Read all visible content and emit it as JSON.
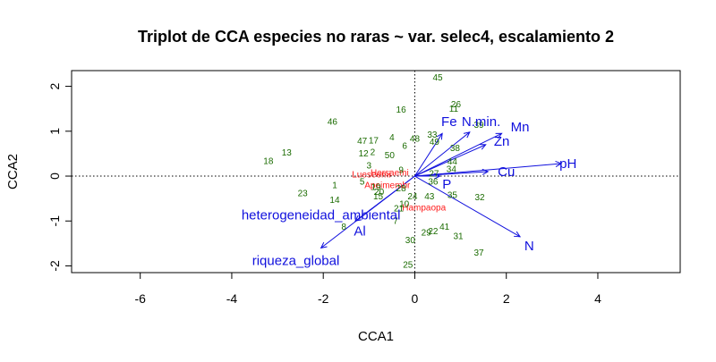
{
  "chart_data": {
    "type": "scatter",
    "title": "Triplot de CCA especies no raras ~ var. selec4, escalamiento 2",
    "xlabel": "CCA1",
    "ylabel": "CCA2",
    "xlim": [
      -7.5,
      5.8
    ],
    "ylim": [
      -2.15,
      2.35
    ],
    "x_ticks": [
      -6,
      -4,
      -2,
      0,
      2,
      4
    ],
    "y_ticks": [
      -2,
      -1,
      0,
      1,
      2
    ],
    "reference_lines": {
      "x": 0,
      "y": 0,
      "style": "dotted"
    },
    "colors": {
      "sites": "#1a6b00",
      "species": "#ff1a1a",
      "vectors": "#1010dd"
    },
    "sites": [
      {
        "label": "45",
        "x": 0.5,
        "y": 2.2
      },
      {
        "label": "26",
        "x": 0.9,
        "y": 1.6
      },
      {
        "label": "11",
        "x": 0.85,
        "y": 1.5
      },
      {
        "label": "16",
        "x": -0.3,
        "y": 1.48
      },
      {
        "label": "39",
        "x": 1.4,
        "y": 1.15
      },
      {
        "label": "46",
        "x": -1.8,
        "y": 1.22
      },
      {
        "label": "33",
        "x": 0.38,
        "y": 0.93
      },
      {
        "label": "4",
        "x": -0.5,
        "y": 0.87
      },
      {
        "label": "48",
        "x": 0.0,
        "y": 0.84
      },
      {
        "label": "49",
        "x": 0.43,
        "y": 0.77
      },
      {
        "label": "47",
        "x": -1.15,
        "y": 0.79
      },
      {
        "label": "6",
        "x": -0.22,
        "y": 0.68
      },
      {
        "label": "38",
        "x": 0.88,
        "y": 0.63
      },
      {
        "label": "2",
        "x": -0.92,
        "y": 0.54
      },
      {
        "label": "13",
        "x": -2.8,
        "y": 0.53
      },
      {
        "label": "12",
        "x": -1.12,
        "y": 0.51
      },
      {
        "label": "50",
        "x": -0.55,
        "y": 0.47
      },
      {
        "label": "18",
        "x": -3.2,
        "y": 0.34
      },
      {
        "label": "17",
        "x": -0.9,
        "y": 0.8
      },
      {
        "label": "3",
        "x": -1.0,
        "y": 0.24
      },
      {
        "label": "9",
        "x": -0.3,
        "y": 0.14
      },
      {
        "label": "44",
        "x": 0.82,
        "y": 0.33
      },
      {
        "label": "34",
        "x": 0.8,
        "y": 0.16
      },
      {
        "label": "27",
        "x": 0.42,
        "y": 0.06
      },
      {
        "label": "5",
        "x": -1.15,
        "y": -0.12
      },
      {
        "label": "1",
        "x": -1.75,
        "y": -0.2
      },
      {
        "label": "19",
        "x": -0.85,
        "y": -0.24
      },
      {
        "label": "36",
        "x": 0.4,
        "y": -0.12
      },
      {
        "label": "28",
        "x": -0.3,
        "y": -0.27
      },
      {
        "label": "20",
        "x": -0.78,
        "y": -0.35
      },
      {
        "label": "15",
        "x": -0.8,
        "y": -0.45
      },
      {
        "label": "24",
        "x": -0.05,
        "y": -0.45
      },
      {
        "label": "43",
        "x": 0.32,
        "y": -0.45
      },
      {
        "label": "35",
        "x": 0.82,
        "y": -0.42
      },
      {
        "label": "23",
        "x": -2.45,
        "y": -0.38
      },
      {
        "label": "32",
        "x": 1.42,
        "y": -0.47
      },
      {
        "label": "14",
        "x": -1.75,
        "y": -0.53
      },
      {
        "label": "10",
        "x": -0.23,
        "y": -0.62
      },
      {
        "label": "21",
        "x": -0.35,
        "y": -0.72
      },
      {
        "label": "7",
        "x": -0.42,
        "y": -1.0
      },
      {
        "label": "8",
        "x": -1.55,
        "y": -1.12
      },
      {
        "label": "41",
        "x": 0.65,
        "y": -1.12
      },
      {
        "label": "22",
        "x": 0.4,
        "y": -1.22
      },
      {
        "label": "29",
        "x": 0.25,
        "y": -1.25
      },
      {
        "label": "31",
        "x": 0.95,
        "y": -1.33
      },
      {
        "label": "30",
        "x": -0.1,
        "y": -1.42
      },
      {
        "label": "37",
        "x": 1.4,
        "y": -1.7
      },
      {
        "label": "25",
        "x": -0.15,
        "y": -1.97
      }
    ],
    "species": [
      {
        "label": "Lueseemi",
        "x": -0.95,
        "y": 0.04
      },
      {
        "label": "Hersaemi",
        "x": -0.55,
        "y": 0.08
      },
      {
        "label": "Apeimembr",
        "x": -0.6,
        "y": -0.2
      },
      {
        "label": "Hampaopa",
        "x": 0.2,
        "y": -0.7
      }
    ],
    "vectors": [
      {
        "label": "pH",
        "x": 3.2,
        "y": 0.28,
        "label_x": 3.35,
        "label_y": 0.28
      },
      {
        "label": "Cu",
        "x": 1.6,
        "y": 0.1,
        "label_x": 2.0,
        "label_y": 0.1
      },
      {
        "label": "Zn",
        "x": 1.55,
        "y": 0.7,
        "label_x": 1.9,
        "label_y": 0.78
      },
      {
        "label": "Mn",
        "x": 1.9,
        "y": 0.95,
        "label_x": 2.3,
        "label_y": 1.1
      },
      {
        "label": "N.min.",
        "x": 1.2,
        "y": 0.98,
        "label_x": 1.45,
        "label_y": 1.22
      },
      {
        "label": "Fe",
        "x": 0.6,
        "y": 0.95,
        "label_x": 0.75,
        "label_y": 1.22
      },
      {
        "label": "P",
        "x": 0.55,
        "y": 0.0,
        "label_x": 0.7,
        "label_y": -0.18
      },
      {
        "label": "N",
        "x": 2.3,
        "y": -1.35,
        "label_x": 2.5,
        "label_y": -1.55
      },
      {
        "label": "heterogeneidad_ambiental",
        "x": 0.0,
        "y": 0.0,
        "label_x": -2.05,
        "label_y": -0.87
      },
      {
        "label": "Al",
        "x": -1.3,
        "y": -1.0,
        "label_x": -1.2,
        "label_y": -1.22
      },
      {
        "label": "riqueza_global",
        "x": -2.05,
        "y": -1.6,
        "label_x": -2.6,
        "label_y": -1.88
      }
    ]
  }
}
